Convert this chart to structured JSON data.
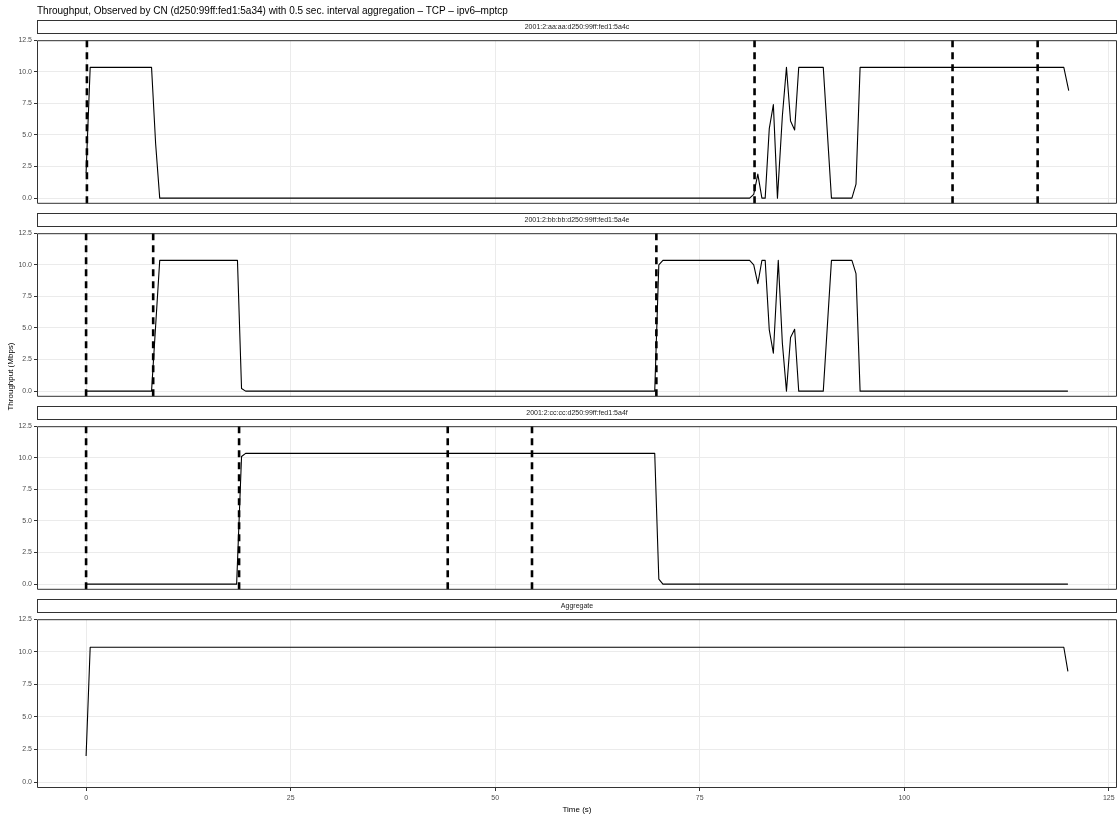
{
  "chart_data": [
    {
      "type": "line",
      "title": "Throughput, Observed by CN (d250:99ff:fed1:5a34) with 0.5 sec. interval aggregation – TCP – ipv6–mptcp",
      "subtitle": "2001:2:aa:aa:d250:99ff:fed1:5a4c",
      "x": [
        0,
        0.5,
        8,
        8.5,
        9,
        81.1,
        81.6,
        82.1,
        82.6,
        83.0,
        83.5,
        84.0,
        84.5,
        85.1,
        85.6,
        86.1,
        86.6,
        87.1,
        90.1,
        91.1,
        93.6,
        94.1,
        94.6,
        119.5,
        120.1
      ],
      "series": [
        {
          "color": "#000000",
          "values": [
            2.0,
            10.35,
            10.35,
            4.3,
            0,
            0,
            0.3,
            1.9,
            0,
            0,
            5.5,
            7.4,
            0,
            6.5,
            10.35,
            6.1,
            5.4,
            10.35,
            10.35,
            0,
            0,
            1.1,
            10.35,
            10.35,
            8.5
          ]
        }
      ],
      "xlim": [
        -6,
        126
      ],
      "xticks": [
        0,
        25,
        50,
        75,
        100,
        125
      ],
      "ylim": [
        -0.45,
        12.5
      ],
      "yticks": [
        {
          "value": 0,
          "label": "0.0"
        },
        2.5,
        {
          "value": 5,
          "label": "5.0"
        },
        7.5,
        {
          "value": 10,
          "label": "10.0"
        },
        12.5
      ],
      "grid": true,
      "tick_labels": "y",
      "marker": "none",
      "line_style": "solid",
      "ref_lines": [
        {
          "axis": "x",
          "value": 0.1,
          "color": "#000000",
          "line_style": "dashed"
        },
        {
          "axis": "x",
          "value": 81.7,
          "color": "#000000",
          "line_style": "dashed"
        },
        {
          "axis": "x",
          "value": 105.9,
          "color": "#000000",
          "line_style": "dashed"
        },
        {
          "axis": "x",
          "value": 116.3,
          "color": "#000000",
          "line_style": "dashed"
        }
      ]
    },
    {
      "type": "line",
      "subtitle": "2001:2:bb:bb:d250:99ff:fed1:5a4e",
      "ylabel": "Throughput (Mbps)",
      "x": [
        0,
        8,
        9,
        18.5,
        19,
        19.5,
        69.5,
        70,
        70.5,
        81.1,
        81.6,
        82.1,
        82.6,
        83.0,
        83.5,
        84.0,
        84.6,
        85.1,
        85.6,
        86.1,
        86.6,
        87.1,
        90.1,
        91.1,
        93.6,
        94.1,
        94.6,
        120
      ],
      "series": [
        {
          "color": "#000000",
          "values": [
            0,
            0,
            10.35,
            10.35,
            0.2,
            0,
            0,
            10.0,
            10.35,
            10.35,
            10.0,
            8.5,
            10.35,
            10.35,
            4.85,
            3.0,
            10.35,
            3.8,
            0,
            4.25,
            4.9,
            0,
            0,
            10.35,
            10.35,
            9.3,
            0,
            0
          ]
        }
      ],
      "xlim": [
        -6,
        126
      ],
      "xticks": [
        0,
        25,
        50,
        75,
        100,
        125
      ],
      "ylim": [
        -0.45,
        12.5
      ],
      "yticks": [
        {
          "value": 0,
          "label": "0.0"
        },
        2.5,
        {
          "value": 5,
          "label": "5.0"
        },
        7.5,
        {
          "value": 10,
          "label": "10.0"
        },
        12.5
      ],
      "grid": true,
      "tick_labels": "y",
      "marker": "none",
      "line_style": "solid",
      "ref_lines": [
        {
          "axis": "x",
          "value": 0,
          "color": "#000000",
          "line_style": "dashed"
        },
        {
          "axis": "x",
          "value": 8.2,
          "color": "#000000",
          "line_style": "dashed"
        },
        {
          "axis": "x",
          "value": 69.7,
          "color": "#000000",
          "line_style": "dashed"
        }
      ]
    },
    {
      "type": "line",
      "subtitle": "2001:2:cc:cc:d250:99ff:fed1:5a4f",
      "x": [
        0,
        18.4,
        19,
        19.5,
        69.5,
        70,
        70.5,
        120
      ],
      "series": [
        {
          "color": "#000000",
          "values": [
            0,
            0,
            10.1,
            10.35,
            10.35,
            0.4,
            0,
            0
          ]
        }
      ],
      "xlim": [
        -6,
        126
      ],
      "xticks": [
        0,
        25,
        50,
        75,
        100,
        125
      ],
      "ylim": [
        -0.45,
        12.5
      ],
      "yticks": [
        {
          "value": 0,
          "label": "0.0"
        },
        2.5,
        {
          "value": 5,
          "label": "5.0"
        },
        7.5,
        {
          "value": 10,
          "label": "10.0"
        },
        12.5
      ],
      "grid": true,
      "tick_labels": "y",
      "marker": "none",
      "line_style": "solid",
      "ref_lines": [
        {
          "axis": "x",
          "value": 0,
          "color": "#000000",
          "line_style": "dashed"
        },
        {
          "axis": "x",
          "value": 18.7,
          "color": "#000000",
          "line_style": "dashed"
        },
        {
          "axis": "x",
          "value": 44.2,
          "color": "#000000",
          "line_style": "dashed"
        },
        {
          "axis": "x",
          "value": 54.5,
          "color": "#000000",
          "line_style": "dashed"
        }
      ]
    },
    {
      "type": "line",
      "subtitle": "Aggregate",
      "xlabel": "Time (s)",
      "x": [
        0,
        0.5,
        119.5,
        120
      ],
      "series": [
        {
          "color": "#000000",
          "values": [
            2.0,
            10.35,
            10.35,
            8.5
          ]
        }
      ],
      "xlim": [
        -6,
        126
      ],
      "xticks": [
        0,
        25,
        50,
        75,
        100,
        125
      ],
      "ylim": [
        -0.45,
        12.5
      ],
      "yticks": [
        {
          "value": 0,
          "label": "0.0"
        },
        2.5,
        {
          "value": 5,
          "label": "5.0"
        },
        7.5,
        {
          "value": 10,
          "label": "10.0"
        },
        12.5
      ],
      "grid": true,
      "marker": "none",
      "line_style": "solid"
    }
  ]
}
